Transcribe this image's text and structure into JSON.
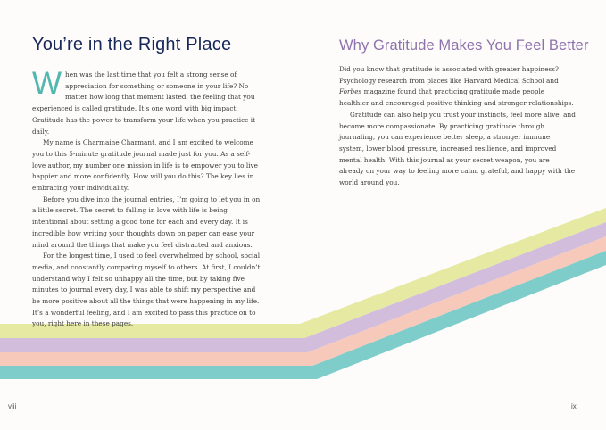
{
  "left_page": {
    "heading": "You’re in the Right Place",
    "drop_cap": "W",
    "p1_rest": "hen was the last time that you felt a strong sense of appreciation for something or someone in your life? No matter how long that moment lasted, the feeling that you experienced is called gratitude. It’s one word with big impact: Gratitude has the power to transform your life when you practice it daily.",
    "p2": "My name is Charmaine Charmant, and I am excited to welcome you to this 5-minute gratitude journal made just for you. As a self-love author, my number one mission in life is to empower you to live happier and more confidently. How will you do this? The key lies in embracing your individuality.",
    "p3": "Before you dive into the journal entries, I’m going to let you in on a little secret. The secret to falling in love with life is being intentional about setting a good tone for each and every day. It is incredible how writing your thoughts down on paper can ease your mind around the things that make you feel distracted and anxious.",
    "p4": "For the longest time, I used to feel overwhelmed by school, social media, and constantly comparing myself to others. At first, I couldn’t understand why I felt so unhappy all the time, but by taking five minutes to journal every day, I was able to shift my perspective and be more positive about all the things that were happening in my life. It’s a wonderful feeling, and I am excited to pass this practice on to you, right here in these pages.",
    "page_number": "viii"
  },
  "right_page": {
    "heading": "Why Gratitude Makes You Feel Better",
    "p1_a": "Did you know that gratitude is associated with greater happiness? Psychology research from places like Harvard Medical School and ",
    "p1_italic": "Forbes",
    "p1_b": " magazine found that practicing gratitude made people healthier and encouraged positive thinking and stronger relationships.",
    "p2": "Gratitude can also help you trust your instincts, feel more alive, and become more compassionate. By practicing gratitude through journaling, you can experience better sleep, a stronger immune system, lower blood pressure, increased resilience, and improved mental health. With this journal as your secret weapon, you are already on your way to feeling more calm, grateful, and happy with the world around you.",
    "page_number": "ix"
  },
  "decoration": {
    "stripe_colors": [
      "#e6e9a2",
      "#d2bddd",
      "#f7c9ba",
      "#7fcdca"
    ]
  }
}
